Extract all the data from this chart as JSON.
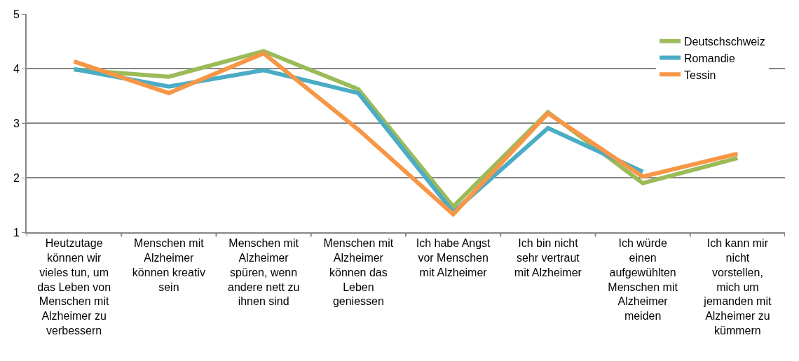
{
  "chart_data": {
    "type": "line",
    "categories": [
      "Heutzutage können wir vieles tun, um das Leben von Menschen mit Alzheimer zu verbessern",
      "Menschen mit Alzheimer können kreativ sein",
      "Menschen mit Alzheimer spüren, wenn andere nett zu ihnen sind",
      "Menschen mit Alzheimer können das Leben geniessen",
      "Ich habe Angst vor Menschen mit Alzheimer",
      "Ich bin nicht sehr vertraut mit Alzheimer",
      "Ich würde einen aufgewühlten Menschen mit Alzheimer meiden",
      "Ich kann mir nicht vorstellen, mich um jemanden mit Alzheimer zu kümmern"
    ],
    "series": [
      {
        "name": "Deutschschweiz",
        "color": "#9bbb59",
        "values": [
          3.98,
          3.85,
          4.32,
          3.62,
          1.47,
          3.2,
          1.9,
          2.36
        ]
      },
      {
        "name": "Romandie",
        "color": "#4bacc6",
        "values": [
          3.99,
          3.67,
          3.97,
          3.55,
          1.37,
          2.91,
          2.11,
          null
        ]
      },
      {
        "name": "Tessin",
        "color": "#f79646",
        "values": [
          4.13,
          3.55,
          4.28,
          2.88,
          1.33,
          3.18,
          2.02,
          2.44
        ]
      }
    ],
    "ylim": [
      1,
      5
    ],
    "yticks": [
      1,
      2,
      3,
      4,
      5
    ],
    "grid": "y",
    "legend": "top right",
    "marker": "none",
    "line_style": "solid"
  }
}
